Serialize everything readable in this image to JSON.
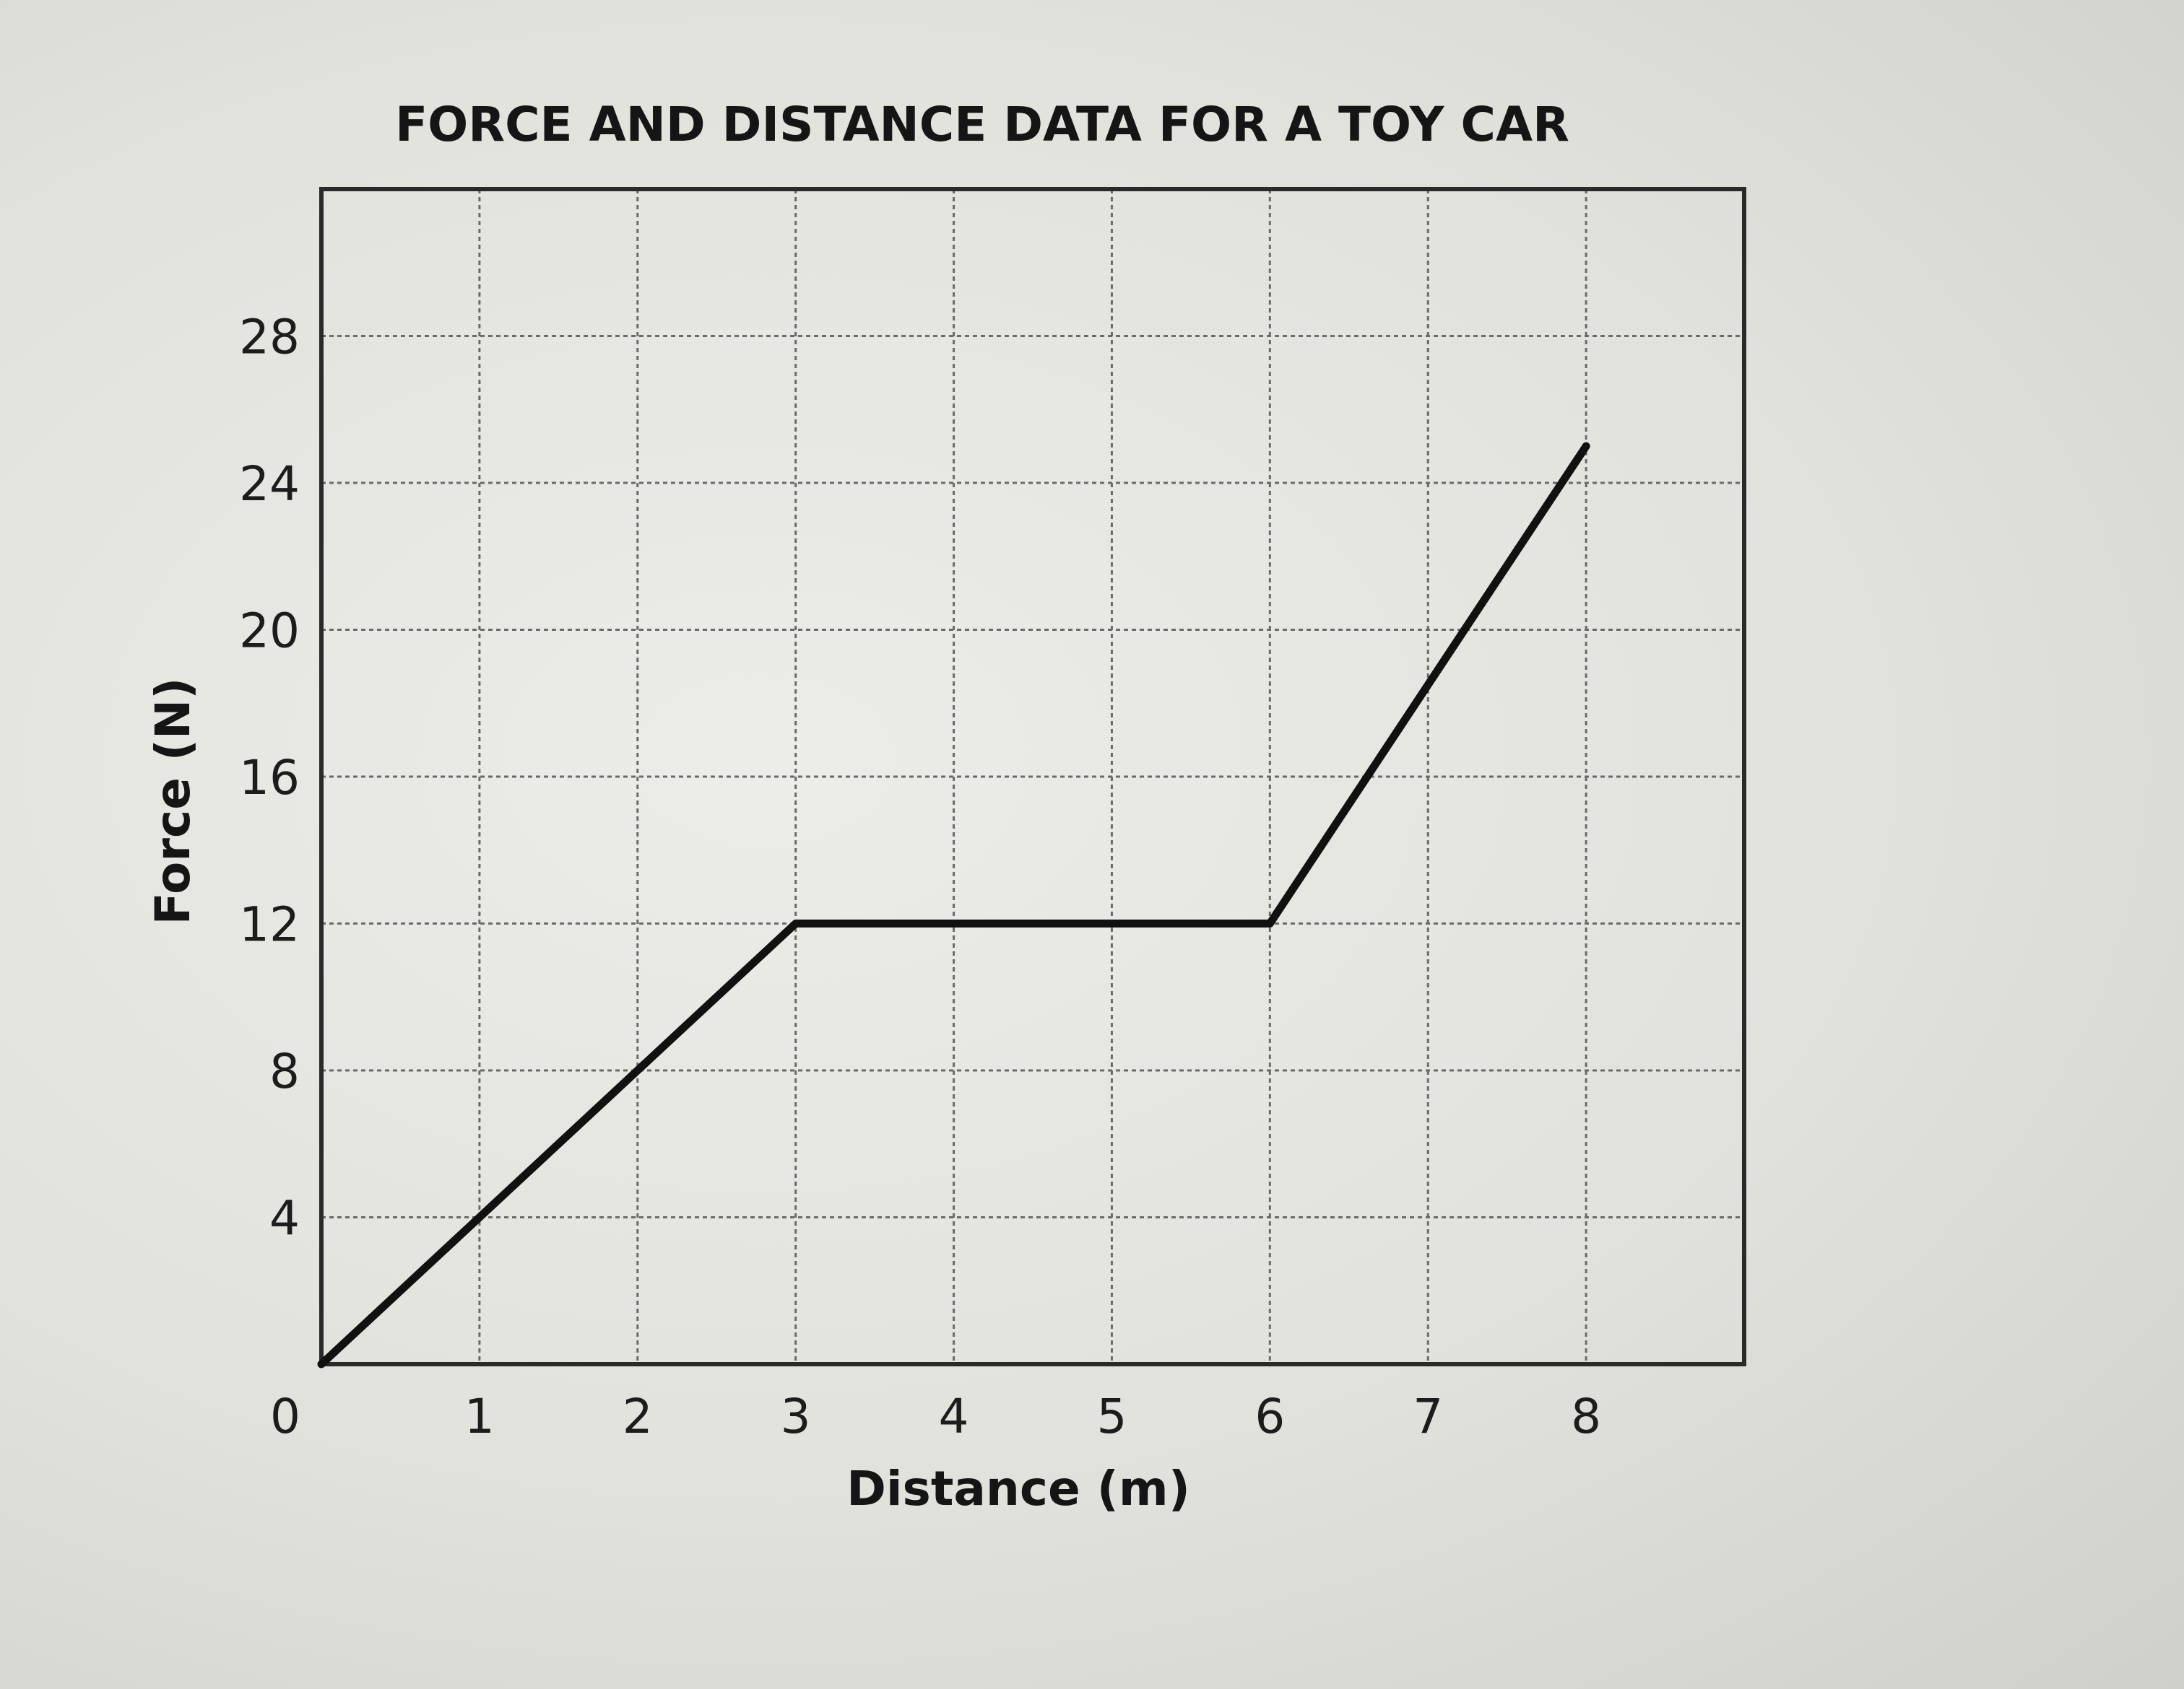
{
  "chart_data": {
    "type": "line",
    "title": "FORCE AND DISTANCE DATA FOR A TOY CAR",
    "xlabel": "Distance (m)",
    "ylabel": "Force (N)",
    "xlim": [
      0,
      9
    ],
    "ylim": [
      0,
      32
    ],
    "x_ticks": [
      0,
      1,
      2,
      3,
      4,
      5,
      6,
      7,
      8
    ],
    "y_ticks": [
      4,
      8,
      12,
      16,
      20,
      24,
      28
    ],
    "grid": true,
    "legend": "none",
    "series": [
      {
        "x": [
          0,
          3,
          6,
          8
        ],
        "y": [
          0,
          12,
          12,
          25
        ],
        "color": "#111111"
      }
    ]
  }
}
